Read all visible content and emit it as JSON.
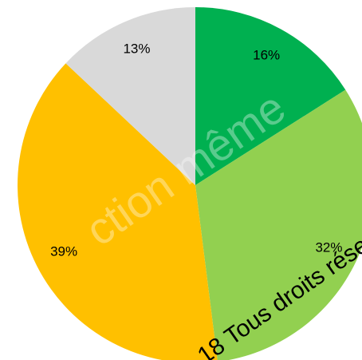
{
  "chart_data": {
    "type": "pie",
    "categories": [
      null,
      null,
      null,
      null
    ],
    "values": [
      16,
      32,
      39,
      13
    ],
    "value_labels": [
      "16%",
      "32%",
      "39%",
      "13%"
    ],
    "colors": [
      "#00b050",
      "#92d050",
      "#ffc000",
      "#d9d9d9"
    ],
    "watermark": [
      "ction même",
      "18 Tous droits réser"
    ]
  }
}
